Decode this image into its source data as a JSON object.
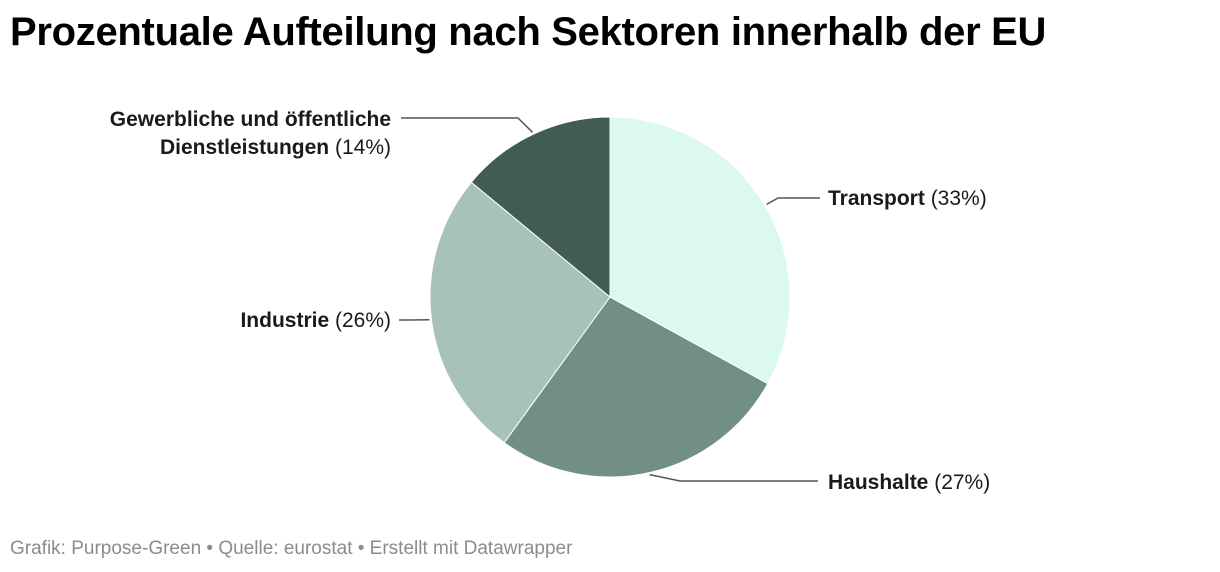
{
  "title": "Prozentuale Aufteilung nach Sektoren innerhalb der EU",
  "chart_data": {
    "type": "pie",
    "title": "Prozentuale Aufteilung nach Sektoren innerhalb der EU",
    "slices": [
      {
        "label": "Transport",
        "value": 33,
        "value_label": "(33%)",
        "color": "#dbf9ee"
      },
      {
        "label": "Haushalte",
        "value": 27,
        "value_label": "(27%)",
        "color": "#718f83"
      },
      {
        "label": "Industrie",
        "value": 26,
        "value_label": "(26%)",
        "color": "#a7c3b7"
      },
      {
        "label": "Gewerbliche und öffentliche Dienstleistungen",
        "label_lines": [
          "Gewerbliche und öffentliche",
          "Dienstleistungen"
        ],
        "value": 14,
        "value_label": "(14%)",
        "color": "#415c52"
      }
    ],
    "start": "12 o'clock",
    "direction": "clockwise"
  },
  "footer": {
    "text": "Grafik: Purpose-Green • Quelle: eurostat • Erstellt mit Datawrapper"
  }
}
